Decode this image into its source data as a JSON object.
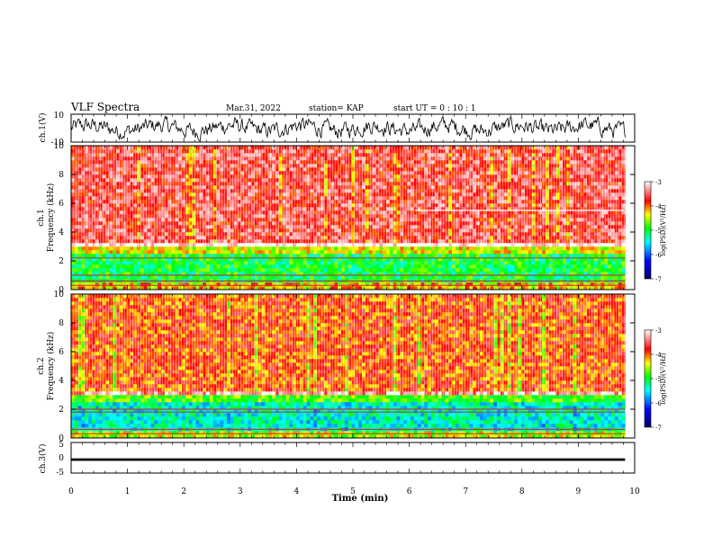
{
  "header": {
    "title": "VLF Spectra",
    "date": "Mar.31, 2022",
    "station": "station= KAP",
    "start": "start UT =  0 : 10 : 1"
  },
  "colors": {
    "colormap": [
      "#000080",
      "#0000ff",
      "#00ffff",
      "#00ff00",
      "#ffff00",
      "#ff0000",
      "#ffffff"
    ],
    "background": "#ffffff",
    "trace": "#000000"
  },
  "chart_data": [
    {
      "type": "line",
      "name": "ch1-waveform",
      "ylabel": "ch.1(V)",
      "ylim": [
        -10,
        10
      ],
      "yticks": [
        "10",
        "-10"
      ],
      "xlim": [
        0,
        10
      ],
      "x_end": 9.83,
      "description_level": "noisy waveform spanning most of the range"
    },
    {
      "type": "heatmap",
      "name": "ch1-spectrogram",
      "ylabel": "ch.1\nFrequency (kHz)",
      "ylim": [
        0,
        10
      ],
      "yticks": [
        "0",
        "2",
        "4",
        "6",
        "8",
        "10"
      ],
      "xlim": [
        0,
        10
      ],
      "x_end": 9.83,
      "colorbar": {
        "label": "log(PSD)(V²/Hz)",
        "range": [
          -7,
          -3
        ],
        "ticks": [
          "-3",
          "-4",
          "-5",
          "-6",
          "-7"
        ]
      },
      "bands": [
        {
          "from_khz": 0,
          "to_khz": 0.5,
          "level": -4.2
        },
        {
          "from_khz": 0.5,
          "to_khz": 3.0,
          "level": -5.0
        },
        {
          "from_khz": 3.0,
          "to_khz": 10,
          "level": -3.6
        }
      ],
      "lines_khz": [
        2.2,
        1.0,
        0.6,
        0.3
      ],
      "segment": {
        "x_from": 6.1,
        "x_to": 9.8,
        "y_khz": 5.5
      }
    },
    {
      "type": "heatmap",
      "name": "ch2-spectrogram",
      "ylabel": "ch.2\nFrequency (kHz)",
      "ylim": [
        0,
        10
      ],
      "yticks": [
        "0",
        "2",
        "4",
        "6",
        "8",
        "10"
      ],
      "xlim": [
        0,
        10
      ],
      "x_end": 9.83,
      "colorbar": {
        "label": "log(PSD)(V²/Hz)",
        "range": [
          -7,
          -3
        ],
        "ticks": [
          "-3",
          "-4",
          "-5",
          "-6",
          "-7"
        ]
      },
      "bands": [
        {
          "from_khz": 0,
          "to_khz": 0.5,
          "level": -4.5
        },
        {
          "from_khz": 0.5,
          "to_khz": 3.0,
          "level": -5.4
        },
        {
          "from_khz": 3.0,
          "to_khz": 10,
          "level": -3.9
        }
      ],
      "lines_khz": [
        2.0,
        1.8,
        0.6,
        0.3
      ],
      "segment": null
    },
    {
      "type": "line",
      "name": "ch3-waveform",
      "ylabel": "ch.3(V)",
      "ylim": [
        -5,
        5
      ],
      "yticks": [
        "5",
        "0",
        "-5"
      ],
      "xlim": [
        0,
        10
      ],
      "x_end": 9.83,
      "band": [
        -1.0,
        -0.2
      ]
    }
  ],
  "xaxis": {
    "label": "Time (min)",
    "ticks": [
      "0",
      "1",
      "2",
      "3",
      "4",
      "5",
      "6",
      "7",
      "8",
      "9",
      "10"
    ]
  }
}
